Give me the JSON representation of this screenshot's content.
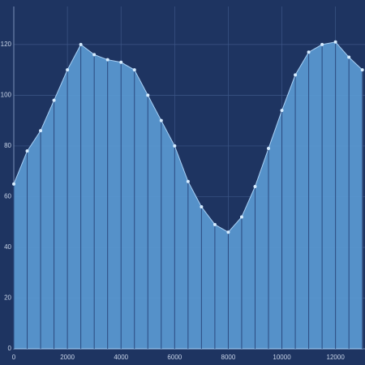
{
  "chart_data": {
    "type": "area",
    "x": [
      0,
      500,
      1000,
      1500,
      2000,
      2500,
      3000,
      3500,
      4000,
      4500,
      5000,
      5500,
      6000,
      6500,
      7000,
      7500,
      8000,
      8500,
      9000,
      9500,
      10000,
      10500,
      11000,
      11500,
      12000,
      12500,
      13000
    ],
    "values": [
      65,
      78,
      86,
      98,
      110,
      120,
      116,
      114,
      113,
      110,
      100,
      90,
      80,
      66,
      56,
      49,
      46,
      52,
      64,
      79,
      94,
      108,
      117,
      120,
      121,
      115,
      110
    ],
    "color": "#5b9bd5",
    "xlim": [
      0,
      13100
    ],
    "ylim": [
      0,
      135
    ],
    "xticks": [
      0,
      2000,
      4000,
      6000,
      8000,
      10000,
      12000
    ],
    "yticks": [
      0,
      20,
      40,
      60,
      80,
      100,
      120
    ],
    "grid": true
  }
}
